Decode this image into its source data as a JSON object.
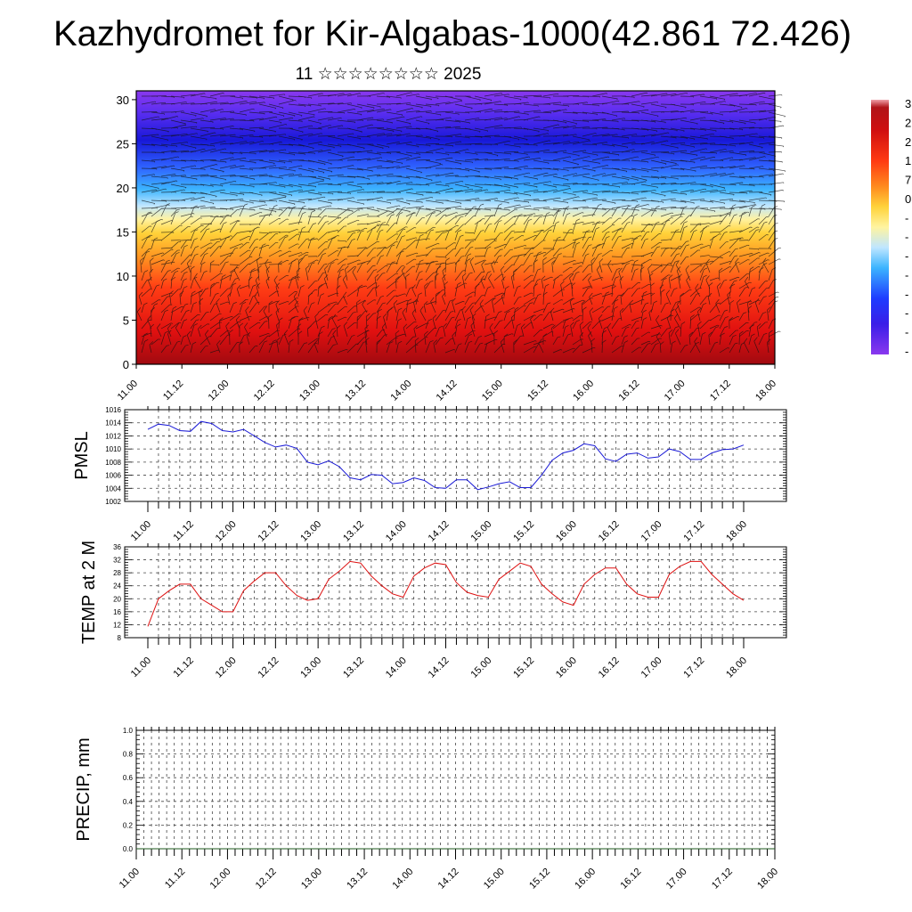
{
  "title": "Kazhydromet for Kir-Algabas-1000(42.861 72.426)",
  "subtitle": "11 ☆☆☆☆☆☆☆☆ 2025",
  "time_labels": [
    "11.00",
    "11.12",
    "12.00",
    "12.12",
    "13.00",
    "13.12",
    "14.00",
    "14.12",
    "15.00",
    "15.12",
    "16.00",
    "16.12",
    "17.00",
    "17.12",
    "18.00"
  ],
  "chart_data": [
    {
      "type": "heatmap",
      "ylim": [
        0,
        31
      ],
      "yticks": [
        "0",
        "5",
        "10",
        "15",
        "20",
        "25",
        "30"
      ],
      "colorbar_labels": [
        "3",
        "2",
        "2",
        "1",
        "7",
        "0",
        "-",
        "-",
        "-",
        "-",
        "-",
        "-",
        "-",
        "-"
      ],
      "colormap": [
        "#7a0b12",
        "#d00f10",
        "#ff3a12",
        "#ff8a1e",
        "#ffd23a",
        "#fff4a0",
        "#bfe6ff",
        "#3cb4ff",
        "#2f63ff",
        "#1f1fe0",
        "#6a2ff0",
        "#8a34ee"
      ],
      "wind_field": true
    },
    {
      "type": "line",
      "ylabel": "PMSL",
      "ylim": [
        1002,
        1016
      ],
      "yticks": [
        "1002",
        "1004",
        "1006",
        "1008",
        "1010",
        "1012",
        "1014",
        "1016"
      ],
      "color": "#1a1ad6",
      "series": [
        {
          "values": [
            1013.0,
            1013.8,
            1013.6,
            1012.8,
            1012.7,
            1014.2,
            1013.9,
            1012.8,
            1012.6,
            1013.0,
            1012.0,
            1011.0,
            1010.3,
            1010.6,
            1010.1,
            1008.0,
            1007.6,
            1008.2,
            1007.3,
            1005.6,
            1005.3,
            1006.1,
            1006.0,
            1004.7,
            1004.9,
            1005.6,
            1005.2,
            1004.1,
            1004.0,
            1005.3,
            1005.3,
            1003.8,
            1004.2,
            1004.7,
            1005.0,
            1004.1,
            1004.1,
            1006.0,
            1008.3,
            1009.4,
            1009.8,
            1010.8,
            1010.5,
            1008.5,
            1008.1,
            1009.2,
            1009.4,
            1008.6,
            1008.8,
            1010.0,
            1009.6,
            1008.4,
            1008.4,
            1009.4,
            1009.9,
            1010.0,
            1010.6
          ]
        }
      ]
    },
    {
      "type": "line",
      "ylabel": "TEMP at 2 M",
      "ylim": [
        8,
        36
      ],
      "yticks": [
        "8",
        "12",
        "16",
        "20",
        "24",
        "28",
        "32",
        "36"
      ],
      "color": "#dd1111",
      "series": [
        {
          "values": [
            11.5,
            20,
            22.5,
            24.5,
            24.5,
            20,
            18,
            16,
            16,
            22.5,
            25.5,
            28,
            28,
            24,
            21,
            19.5,
            20,
            26,
            28.5,
            31.5,
            31,
            27,
            24,
            21.5,
            20.5,
            27,
            29.5,
            31,
            30.5,
            25,
            22,
            21,
            20.5,
            26,
            28.5,
            31,
            30,
            24.5,
            21.5,
            19,
            18,
            24.5,
            27.5,
            29.5,
            29.5,
            24.5,
            21.5,
            20.5,
            20.5,
            27.5,
            30,
            31.5,
            31.5,
            27.5,
            24.5,
            21.5,
            19.5
          ]
        }
      ]
    },
    {
      "type": "line",
      "ylabel": "PRECIP, mm",
      "ylim": [
        0,
        1
      ],
      "yticks": [
        "0.0",
        "0.2",
        "0.4",
        "0.6",
        "0.8",
        "1.0"
      ],
      "color": "#1e5a1e",
      "series": [
        {
          "values": [
            0,
            0,
            0,
            0,
            0,
            0,
            0,
            0,
            0,
            0,
            0,
            0,
            0,
            0,
            0
          ]
        }
      ]
    }
  ]
}
